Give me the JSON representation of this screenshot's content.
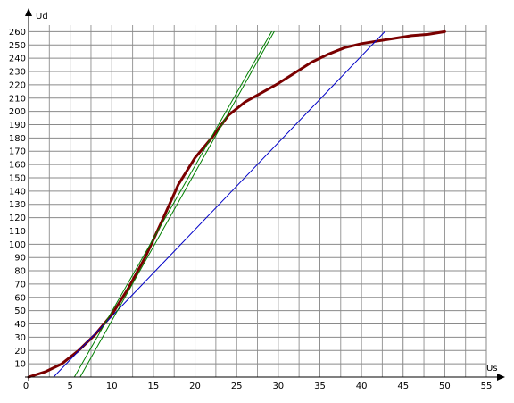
{
  "chart_data": {
    "type": "line",
    "title": "",
    "xlabel": "Us",
    "ylabel": "Ud",
    "xlim": [
      0,
      55
    ],
    "ylim": [
      0,
      265
    ],
    "x_ticks": [
      0,
      5,
      10,
      15,
      20,
      25,
      30,
      35,
      40,
      45,
      50,
      55
    ],
    "y_ticks": [
      10,
      20,
      30,
      40,
      50,
      60,
      70,
      80,
      90,
      100,
      110,
      120,
      130,
      140,
      150,
      160,
      170,
      180,
      190,
      200,
      210,
      220,
      230,
      240,
      250,
      260
    ],
    "x_minor_step": 2.5,
    "grid": true,
    "legend": "none",
    "series": [
      {
        "color": "#7a0000",
        "width": 3,
        "points": [
          [
            0,
            0
          ],
          [
            2,
            4
          ],
          [
            4,
            10
          ],
          [
            6,
            20
          ],
          [
            8,
            32
          ],
          [
            10,
            47
          ],
          [
            12,
            67
          ],
          [
            14,
            90
          ],
          [
            16,
            117
          ],
          [
            18,
            145
          ],
          [
            20,
            165
          ],
          [
            22,
            180
          ],
          [
            24,
            197
          ],
          [
            26,
            207
          ],
          [
            28,
            214
          ],
          [
            30,
            221
          ],
          [
            32,
            229
          ],
          [
            34,
            237
          ],
          [
            36,
            243
          ],
          [
            38,
            248
          ],
          [
            40,
            251
          ],
          [
            42,
            253
          ],
          [
            44,
            255
          ],
          [
            46,
            257
          ],
          [
            48,
            258
          ],
          [
            50,
            260
          ]
        ]
      },
      {
        "color": "#0000c8",
        "width": 1,
        "points": [
          [
            3,
            0
          ],
          [
            42.8,
            260
          ]
        ]
      },
      {
        "color": "#008000",
        "width": 1,
        "points": [
          [
            5.5,
            0
          ],
          [
            29.2,
            260
          ]
        ]
      },
      {
        "color": "#008000",
        "width": 1,
        "points": [
          [
            6.2,
            0
          ],
          [
            29.5,
            260
          ]
        ]
      }
    ]
  }
}
